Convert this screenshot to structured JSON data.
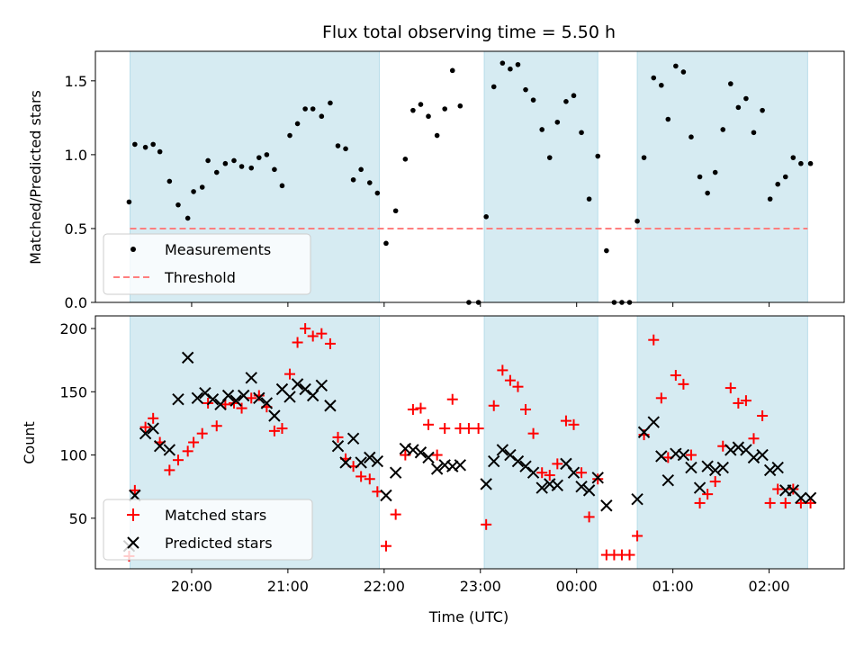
{
  "chart_data": {
    "type": "scatter",
    "title": "Flux total observing time = 5.50 h",
    "xlabel": "Time (UTC)",
    "x_unit": "hours since 19:00 UTC",
    "x_ticks": [
      {
        "value": 1,
        "label": "20:00"
      },
      {
        "value": 2,
        "label": "21:00"
      },
      {
        "value": 3,
        "label": "22:00"
      },
      {
        "value": 4,
        "label": "23:00"
      },
      {
        "value": 5,
        "label": "00:00"
      },
      {
        "value": 6,
        "label": "01:00"
      },
      {
        "value": 7,
        "label": "02:00"
      }
    ],
    "xlim": [
      0.0,
      7.78
    ],
    "shaded_intervals": [
      [
        0.36,
        2.95
      ],
      [
        4.04,
        5.22
      ],
      [
        5.63,
        7.4
      ]
    ],
    "shade_color": "#add8e6",
    "panels": [
      {
        "ylabel": "Matched/Predicted stars",
        "ylim": [
          0,
          1.7
        ],
        "yticks": [
          {
            "value": 0,
            "label": "0.0"
          },
          {
            "value": 0.5,
            "label": "0.5"
          },
          {
            "value": 1.0,
            "label": "1.0"
          },
          {
            "value": 1.5,
            "label": "1.5"
          }
        ],
        "threshold": {
          "name": "Threshold",
          "value": 0.5,
          "x_range": [
            0.36,
            7.4
          ],
          "color": "#ff7f7f"
        },
        "legend": {
          "position": "lower-left",
          "entries": [
            "Measurements",
            "Threshold"
          ]
        },
        "series": [
          {
            "name": "Measurements",
            "marker": "dot",
            "color": "#000000",
            "x": [
              0.35,
              0.41,
              0.52,
              0.6,
              0.67,
              0.77,
              0.86,
              0.96,
              1.02,
              1.11,
              1.17,
              1.26,
              1.35,
              1.44,
              1.52,
              1.62,
              1.7,
              1.78,
              1.86,
              1.94,
              2.02,
              2.1,
              2.18,
              2.26,
              2.35,
              2.44,
              2.52,
              2.6,
              2.68,
              2.76,
              2.85,
              2.93,
              3.02,
              3.12,
              3.22,
              3.3,
              3.38,
              3.46,
              3.55,
              3.63,
              3.71,
              3.79,
              3.88,
              3.98,
              4.06,
              4.14,
              4.23,
              4.31,
              4.39,
              4.47,
              4.55,
              4.64,
              4.72,
              4.8,
              4.89,
              4.97,
              5.05,
              5.13,
              5.22,
              5.31,
              5.39,
              5.47,
              5.55,
              5.63,
              5.7,
              5.8,
              5.88,
              5.95,
              6.03,
              6.11,
              6.19,
              6.28,
              6.36,
              6.44,
              6.52,
              6.6,
              6.68,
              6.76,
              6.84,
              6.93,
              7.01,
              7.09,
              7.17,
              7.25,
              7.33,
              7.43
            ],
            "y": [
              0.68,
              1.07,
              1.05,
              1.07,
              1.02,
              0.82,
              0.66,
              0.57,
              0.75,
              0.78,
              0.96,
              0.88,
              0.94,
              0.96,
              0.92,
              0.91,
              0.98,
              1.0,
              0.9,
              0.79,
              1.13,
              1.21,
              1.31,
              1.31,
              1.26,
              1.35,
              1.06,
              1.04,
              0.83,
              0.9,
              0.81,
              0.74,
              0.4,
              0.62,
              0.97,
              1.3,
              1.34,
              1.26,
              1.13,
              1.31,
              1.57,
              1.33,
              0.0,
              0.0,
              0.58,
              1.46,
              1.62,
              1.58,
              1.61,
              1.44,
              1.37,
              1.17,
              0.98,
              1.22,
              1.36,
              1.4,
              1.15,
              0.7,
              0.99,
              0.35,
              0.0,
              0.0,
              0.0,
              0.55,
              0.98,
              1.52,
              1.47,
              1.24,
              1.6,
              1.56,
              1.12,
              0.85,
              0.74,
              0.88,
              1.17,
              1.48,
              1.32,
              1.38,
              1.15,
              1.3,
              0.7,
              0.8,
              0.85,
              0.98,
              0.94,
              0.94
            ]
          }
        ]
      },
      {
        "ylabel": "Count",
        "ylim": [
          10,
          210
        ],
        "yticks": [
          {
            "value": 50,
            "label": "50"
          },
          {
            "value": 100,
            "label": "100"
          },
          {
            "value": 150,
            "label": "150"
          },
          {
            "value": 200,
            "label": "200"
          }
        ],
        "legend": {
          "position": "lower-left",
          "entries": [
            "Matched stars",
            "Predicted stars"
          ]
        },
        "series": [
          {
            "name": "Matched stars",
            "marker": "plus",
            "color": "#ff0000",
            "x": [
              0.35,
              0.41,
              0.52,
              0.6,
              0.67,
              0.77,
              0.86,
              0.96,
              1.02,
              1.11,
              1.17,
              1.26,
              1.35,
              1.44,
              1.52,
              1.62,
              1.7,
              1.78,
              1.86,
              1.94,
              2.02,
              2.1,
              2.18,
              2.26,
              2.35,
              2.44,
              2.52,
              2.6,
              2.68,
              2.76,
              2.85,
              2.93,
              3.02,
              3.12,
              3.22,
              3.3,
              3.38,
              3.46,
              3.55,
              3.63,
              3.71,
              3.79,
              3.88,
              3.98,
              4.06,
              4.14,
              4.23,
              4.31,
              4.39,
              4.47,
              4.55,
              4.64,
              4.72,
              4.8,
              4.89,
              4.97,
              5.05,
              5.13,
              5.22,
              5.31,
              5.39,
              5.47,
              5.55,
              5.63,
              5.7,
              5.8,
              5.88,
              5.95,
              6.03,
              6.11,
              6.19,
              6.28,
              6.36,
              6.44,
              6.52,
              6.6,
              6.68,
              6.76,
              6.84,
              6.93,
              7.01,
              7.09,
              7.17,
              7.25,
              7.33,
              7.43
            ],
            "y": [
              20,
              72,
              122,
              129,
              110,
              88,
              96,
              103,
              110,
              117,
              141,
              123,
              140,
              141,
              137,
              145,
              147,
              138,
              119,
              121,
              164,
              189,
              200,
              194,
              196,
              188,
              114,
              97,
              91,
              83,
              81,
              71,
              28,
              53,
              100,
              136,
              137,
              124,
              100,
              121,
              144,
              121,
              121,
              121,
              45,
              139,
              167,
              159,
              154,
              136,
              117,
              86,
              84,
              93,
              127,
              124,
              86,
              51,
              81,
              21,
              21,
              21,
              21,
              36,
              116,
              191,
              145,
              98,
              163,
              156,
              100,
              62,
              69,
              79,
              107,
              153,
              141,
              143,
              113,
              131,
              62,
              73,
              62,
              73,
              62,
              62
            ]
          },
          {
            "name": "Predicted stars",
            "marker": "x",
            "color": "#000000",
            "x": [
              0.35,
              0.41,
              0.52,
              0.6,
              0.67,
              0.77,
              0.86,
              0.96,
              1.06,
              1.14,
              1.22,
              1.3,
              1.38,
              1.46,
              1.54,
              1.62,
              1.7,
              1.78,
              1.86,
              1.94,
              2.02,
              2.1,
              2.18,
              2.26,
              2.35,
              2.44,
              2.52,
              2.6,
              2.68,
              2.76,
              2.85,
              2.93,
              3.02,
              3.12,
              3.22,
              3.3,
              3.38,
              3.46,
              3.55,
              3.63,
              3.71,
              3.79,
              4.06,
              4.14,
              4.23,
              4.31,
              4.39,
              4.47,
              4.55,
              4.64,
              4.72,
              4.8,
              4.89,
              4.97,
              5.05,
              5.13,
              5.22,
              5.31,
              5.63,
              5.7,
              5.8,
              5.88,
              5.95,
              6.03,
              6.11,
              6.19,
              6.28,
              6.36,
              6.44,
              6.52,
              6.6,
              6.68,
              6.76,
              6.84,
              6.93,
              7.01,
              7.09,
              7.17,
              7.25,
              7.33,
              7.43
            ],
            "y": [
              28,
              68,
              117,
              121,
              107,
              104,
              144,
              177,
              145,
              149,
              144,
              140,
              147,
              143,
              147,
              161,
              145,
              141,
              131,
              152,
              146,
              156,
              152,
              147,
              155,
              139,
              107,
              94,
              113,
              94,
              98,
              95,
              68,
              86,
              105,
              104,
              102,
              98,
              89,
              92,
              91,
              92,
              77,
              95,
              104,
              100,
              95,
              91,
              86,
              74,
              77,
              76,
              93,
              86,
              75,
              72,
              82,
              60,
              65,
              118,
              126,
              99,
              80,
              101,
              100,
              90,
              74,
              91,
              88,
              90,
              104,
              106,
              104,
              98,
              100,
              88,
              90,
              72,
              72,
              66,
              66
            ]
          }
        ]
      }
    ]
  }
}
